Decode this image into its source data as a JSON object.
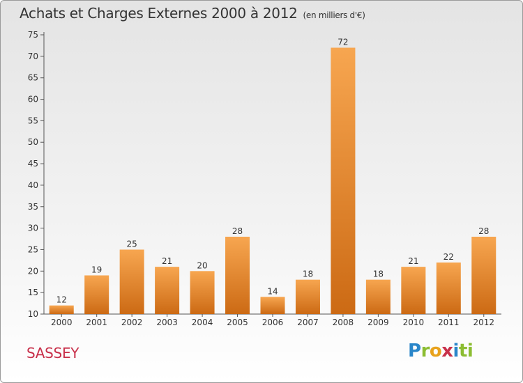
{
  "title": "Achats et Charges Externes 2000 à 2012",
  "unit": "(en milliers d'€)",
  "commune": "SASSEY",
  "logo": {
    "p1": "P",
    "p2": "r",
    "p3": "o",
    "p4": "x",
    "p5": "i",
    "p6": "ti"
  },
  "colors": {
    "bar_top": "#f7a650",
    "bar_bottom": "#cc6a14",
    "axis": "#555555",
    "title_text": "#333333",
    "commune_text": "#c8304a"
  },
  "chart_data": {
    "type": "bar",
    "title": "Achats et Charges Externes 2000 à 2012",
    "xlabel": "",
    "ylabel": "",
    "categories": [
      "2000",
      "2001",
      "2002",
      "2003",
      "2004",
      "2005",
      "2006",
      "2007",
      "2008",
      "2009",
      "2010",
      "2011",
      "2012"
    ],
    "values": [
      12,
      19,
      25,
      21,
      20,
      28,
      14,
      18,
      72,
      18,
      21,
      22,
      28
    ],
    "ylim": [
      10,
      75
    ],
    "yticks": [
      10,
      15,
      20,
      25,
      30,
      35,
      40,
      45,
      50,
      55,
      60,
      65,
      70,
      75
    ],
    "grid": false,
    "legend": "none"
  }
}
